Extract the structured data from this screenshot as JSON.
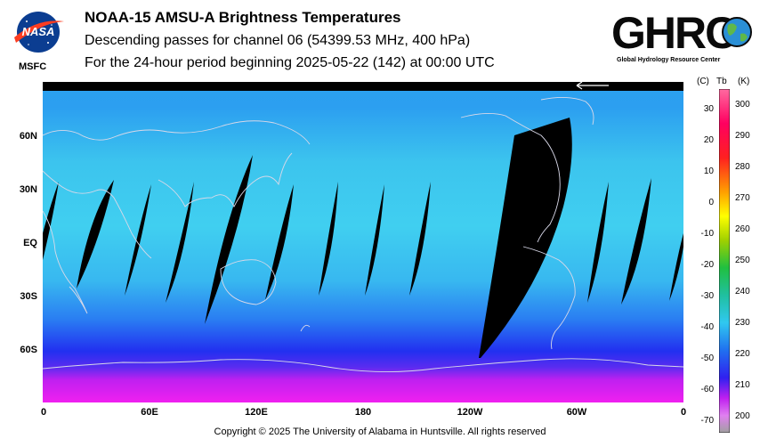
{
  "header": {
    "title": "NOAA-15 AMSU-A Brightness Temperatures",
    "subtitle": "Descending passes for channel 06 (54399.53 MHz, 400 hPa)",
    "period": "For the 24-hour period beginning 2025-05-22 (142) at 00:00 UTC"
  },
  "logos": {
    "nasa_text": "NASA",
    "msfc_text": "MSFC",
    "ghrc_text": "GHRC",
    "ghrc_subtitle": "Global Hydrology Resource Center"
  },
  "map": {
    "lat_labels": [
      "60N",
      "30N",
      "EQ",
      "30S",
      "60S"
    ],
    "lon_labels": [
      "0",
      "60E",
      "120E",
      "180",
      "120W",
      "60W",
      "0"
    ]
  },
  "colorbar": {
    "header_c": "(C)",
    "header_tb": "Tb",
    "header_k": "(K)",
    "celsius_ticks": [
      "30",
      "20",
      "10",
      "0",
      "-10",
      "-20",
      "-30",
      "-40",
      "-50",
      "-60",
      "-70"
    ],
    "kelvin_ticks": [
      "300",
      "290",
      "280",
      "270",
      "260",
      "250",
      "240",
      "230",
      "220",
      "210",
      "200"
    ],
    "kelvin_range": [
      195,
      305
    ]
  },
  "footer": {
    "copyright": "Copyright © 2025 The University of Alabama in Huntsville.  All rights reserved"
  },
  "colors": {
    "swath_gap": "#000000",
    "land_outline": "#d8d8e8",
    "warm_band": "#3ec8ee",
    "cold_band": "#2030f0",
    "polar_south": "#e020f0"
  }
}
